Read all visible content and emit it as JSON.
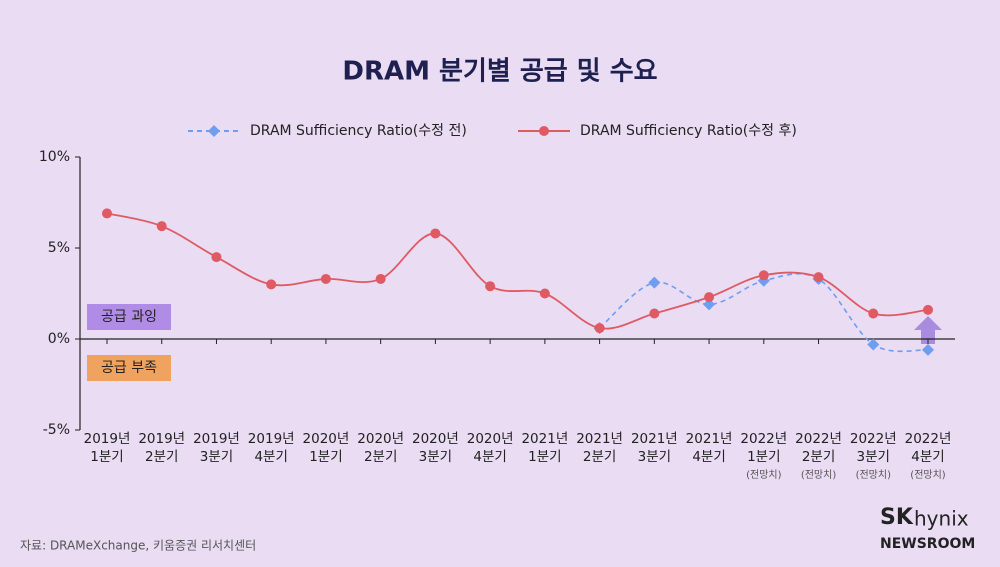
{
  "chart_data": {
    "type": "line",
    "title": "DRAM 분기별 공급 및 수요",
    "categories": [
      "2019년\n1분기",
      "2019년\n2분기",
      "2019년\n3분기",
      "2019년\n4분기",
      "2020년\n1분기",
      "2020년\n2분기",
      "2020년\n3분기",
      "2020년\n4분기",
      "2021년\n1분기",
      "2021년\n2분기",
      "2021년\n3분기",
      "2021년\n4분기",
      "2022년\n1분기",
      "2022년\n2분기",
      "2022년\n3분기",
      "2022년\n4분기"
    ],
    "category_notes": [
      null,
      null,
      null,
      null,
      null,
      null,
      null,
      null,
      null,
      null,
      null,
      null,
      "(전망치)",
      "(전망치)",
      "(전망치)",
      "(전망치)"
    ],
    "series": [
      {
        "name": "DRAM Sufficiency Ratio(수정 전)",
        "color": "#6f9ef0",
        "dashed": true,
        "marker": "diamond",
        "values": [
          null,
          null,
          null,
          null,
          null,
          null,
          null,
          null,
          null,
          0.6,
          3.1,
          1.9,
          3.2,
          3.3,
          -0.3,
          -0.6
        ]
      },
      {
        "name": "DRAM Sufficiency Ratio(수정 후)",
        "color": "#e05a63",
        "dashed": false,
        "marker": "circle",
        "values": [
          6.9,
          6.2,
          4.5,
          3.0,
          3.3,
          3.3,
          5.8,
          2.9,
          2.5,
          0.6,
          1.4,
          2.3,
          3.5,
          3.4,
          1.4,
          1.6
        ]
      }
    ],
    "ylim": [
      -5,
      10
    ],
    "yticks": [
      {
        "value": -5,
        "label": "-5%"
      },
      {
        "value": 0,
        "label": "0%"
      },
      {
        "value": 5,
        "label": "5%"
      },
      {
        "value": 10,
        "label": "10%"
      }
    ],
    "annotations": [
      "공급 과잉",
      "공급 부족"
    ]
  },
  "source": "자료: DRAMeXchange,  키움증권 리서치센터",
  "logo": {
    "brand": "SK",
    "name": "hynix",
    "sub": "NEWSROOM"
  }
}
